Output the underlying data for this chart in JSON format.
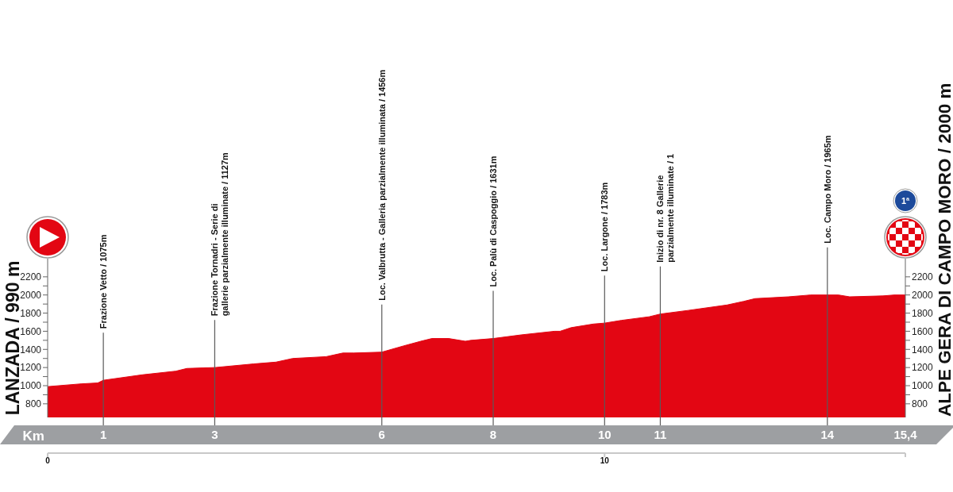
{
  "chart_data": {
    "type": "area",
    "ylabel": "LANZADA / 990 m",
    "y2label": "ALPE GERA DI CAMPO MORO / 2000 m",
    "xlabel": "Km",
    "x": [
      0,
      0.6,
      0.9,
      1.0,
      1.7,
      2.3,
      2.5,
      3.0,
      3.7,
      4.1,
      4.4,
      5.0,
      5.3,
      5.5,
      6.0,
      6.4,
      6.7,
      6.9,
      7.2,
      7.5,
      7.6,
      8.0,
      8.5,
      9.1,
      9.2,
      9.4,
      9.8,
      10.0,
      10.3,
      10.8,
      11.0,
      11.5,
      12.2,
      12.5,
      12.7,
      13.3,
      13.7,
      14.0,
      14.2,
      14.4,
      15.0,
      15.2,
      15.4
    ],
    "values": [
      990,
      1020,
      1030,
      1060,
      1120,
      1160,
      1190,
      1200,
      1240,
      1260,
      1300,
      1320,
      1360,
      1360,
      1370,
      1440,
      1490,
      1520,
      1520,
      1490,
      1500,
      1520,
      1560,
      1600,
      1600,
      1640,
      1680,
      1690,
      1720,
      1760,
      1790,
      1830,
      1890,
      1930,
      1960,
      1980,
      2000,
      2000,
      2000,
      1980,
      1990,
      2000,
      2000
    ],
    "color": "#e30613",
    "xlim": [
      0,
      15.4
    ],
    "xticks": [
      1,
      3,
      6,
      8,
      10,
      11,
      14,
      {
        "value": 15.4,
        "label": "15,4"
      }
    ],
    "x2lim": [
      0,
      15.4
    ],
    "x2ticks": [
      0,
      10,
      {
        "value": 15.4,
        "label": null
      }
    ],
    "ylim": [
      650,
      2400
    ],
    "yticks": [
      800,
      {
        "value": 900,
        "label": null
      },
      1000,
      {
        "value": 1100,
        "label": null
      },
      1200,
      {
        "value": 1300,
        "label": null
      },
      1400,
      {
        "value": 1500,
        "label": null
      },
      1600,
      {
        "value": 1700,
        "label": null
      },
      1800,
      {
        "value": 1900,
        "label": null
      },
      2000,
      {
        "value": 2100,
        "label": null
      },
      2200
    ],
    "y2lim": [
      650,
      2400
    ],
    "y2ticks": [
      800,
      {
        "value": 900,
        "label": null
      },
      1000,
      {
        "value": 1100,
        "label": null
      },
      1200,
      {
        "value": 1300,
        "label": null
      },
      1400,
      {
        "value": 1500,
        "label": null
      },
      1600,
      {
        "value": 1700,
        "label": null
      },
      1800,
      {
        "value": 1900,
        "label": null
      },
      2000,
      {
        "value": 2100,
        "label": null
      },
      2200
    ],
    "ref_lines": [
      {
        "axis": "x",
        "value": 1,
        "label": "Frazione Vetto / 1075m"
      },
      {
        "axis": "x",
        "value": 3,
        "label": "Frazione Tornadri - Serie di gallerie parzialmente illuminate / 1127m"
      },
      {
        "axis": "x",
        "value": 6,
        "label": "Loc. Valbrutta - Galleria parzialmente illuminata / 1456m"
      },
      {
        "axis": "x",
        "value": 8,
        "label": "Loc. Palù di Caspoggio / 1631m"
      },
      {
        "axis": "x",
        "value": 10,
        "label": "Loc. Largone / 1783m"
      },
      {
        "axis": "x",
        "value": 11,
        "label": "Inizio di nr. 8 Gallerie parzialmente illuminate / 1"
      },
      {
        "axis": "x",
        "value": 14,
        "label": "Loc. Campo Moro / 1965m"
      }
    ],
    "annotations": [
      "1ª"
    ]
  }
}
